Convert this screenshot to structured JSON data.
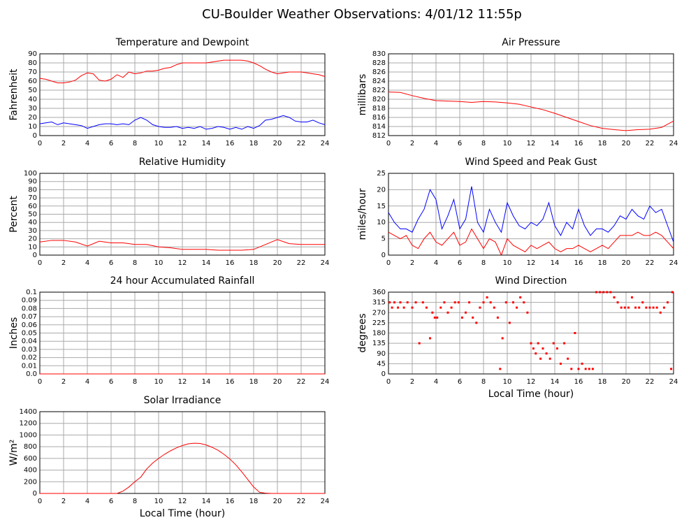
{
  "title": "CU-Boulder Weather Observations: 4/01/12 11:55p",
  "chart_data": [
    {
      "type": "line",
      "title": "Temperature and Dewpoint",
      "ylabel": "Fahrenheit",
      "grid": true,
      "xlim": [
        0,
        24
      ],
      "xticks": [
        0,
        2,
        4,
        6,
        8,
        10,
        12,
        14,
        16,
        18,
        20,
        22,
        24
      ],
      "ylim": [
        0,
        90
      ],
      "yticks": [
        0,
        10,
        20,
        30,
        40,
        50,
        60,
        70,
        80,
        90
      ],
      "x": [
        0,
        0.5,
        1,
        1.5,
        2,
        2.5,
        3,
        3.5,
        4,
        4.5,
        5,
        5.5,
        6,
        6.5,
        7,
        7.5,
        8,
        8.5,
        9,
        9.5,
        10,
        10.5,
        11,
        11.5,
        12,
        12.5,
        13,
        13.5,
        14,
        14.5,
        15,
        15.5,
        16,
        16.5,
        17,
        17.5,
        18,
        18.5,
        19,
        19.5,
        20,
        20.5,
        21,
        21.5,
        22,
        22.5,
        23,
        23.5,
        24
      ],
      "series": [
        {
          "color": "#ff0000",
          "values": [
            63,
            62,
            60,
            58,
            58,
            59,
            61,
            66,
            69,
            68,
            61,
            60,
            62,
            67,
            64,
            70,
            68,
            69,
            71,
            71,
            72,
            74,
            75,
            78,
            80,
            80,
            80,
            80,
            80,
            81,
            82,
            83,
            83,
            83,
            83,
            82,
            80,
            77,
            73,
            70,
            68,
            69,
            70,
            70,
            70,
            69,
            68,
            67,
            65
          ]
        },
        {
          "color": "#0000ff",
          "values": [
            13,
            14,
            15,
            12,
            14,
            13,
            12,
            11,
            8,
            10,
            12,
            13,
            13,
            12,
            13,
            12,
            17,
            20,
            17,
            12,
            10,
            9,
            9,
            10,
            8,
            9,
            8,
            10,
            7,
            8,
            10,
            9,
            7,
            9,
            7,
            10,
            8,
            11,
            17,
            18,
            20,
            22,
            20,
            16,
            15,
            15,
            17,
            14,
            12
          ]
        }
      ]
    },
    {
      "type": "line",
      "title": "Air Pressure",
      "ylabel": "millibars",
      "grid": true,
      "xlim": [
        0,
        24
      ],
      "xticks": [
        0,
        2,
        4,
        6,
        8,
        10,
        12,
        14,
        16,
        18,
        20,
        22,
        24
      ],
      "ylim": [
        812,
        830
      ],
      "yticks": [
        812,
        814,
        816,
        818,
        820,
        822,
        824,
        826,
        828,
        830
      ],
      "x": [
        0,
        1,
        2,
        3,
        4,
        5,
        6,
        7,
        8,
        9,
        10,
        11,
        12,
        13,
        14,
        15,
        16,
        17,
        18,
        19,
        20,
        21,
        22,
        23,
        24
      ],
      "series": [
        {
          "color": "#ff0000",
          "values": [
            821.6,
            821.5,
            820.8,
            820.2,
            819.7,
            819.6,
            819.5,
            819.3,
            819.5,
            819.4,
            819.2,
            818.9,
            818.3,
            817.7,
            816.9,
            816.0,
            815.1,
            814.2,
            813.6,
            813.3,
            813.1,
            813.3,
            813.4,
            813.8,
            815.2
          ]
        }
      ]
    },
    {
      "type": "line",
      "title": "Relative Humidity",
      "ylabel": "Percent",
      "grid": true,
      "xlim": [
        0,
        24
      ],
      "xticks": [
        0,
        2,
        4,
        6,
        8,
        10,
        12,
        14,
        16,
        18,
        20,
        22,
        24
      ],
      "ylim": [
        0,
        100
      ],
      "yticks": [
        0,
        10,
        20,
        30,
        40,
        50,
        60,
        70,
        80,
        90,
        100
      ],
      "x": [
        0,
        1,
        2,
        3,
        4,
        5,
        6,
        7,
        8,
        9,
        10,
        11,
        12,
        13,
        14,
        15,
        16,
        17,
        18,
        19,
        20,
        21,
        22,
        23,
        24
      ],
      "series": [
        {
          "color": "#ff0000",
          "values": [
            16,
            18,
            18,
            16,
            11,
            17,
            15,
            15,
            13,
            13,
            10,
            9,
            7,
            7,
            7,
            6,
            6,
            6,
            7,
            13,
            19,
            14,
            13,
            13,
            13
          ]
        }
      ]
    },
    {
      "type": "line",
      "title": "Wind Speed and Peak Gust",
      "ylabel": "miles/hour",
      "grid": true,
      "xlim": [
        0,
        24
      ],
      "xticks": [
        0,
        2,
        4,
        6,
        8,
        10,
        12,
        14,
        16,
        18,
        20,
        22,
        24
      ],
      "ylim": [
        0,
        25
      ],
      "yticks": [
        0,
        5,
        10,
        15,
        20,
        25
      ],
      "x": [
        0,
        0.5,
        1,
        1.5,
        2,
        2.5,
        3,
        3.5,
        4,
        4.5,
        5,
        5.5,
        6,
        6.5,
        7,
        7.5,
        8,
        8.5,
        9,
        9.5,
        10,
        10.5,
        11,
        11.5,
        12,
        12.5,
        13,
        13.5,
        14,
        14.5,
        15,
        15.5,
        16,
        16.5,
        17,
        17.5,
        18,
        18.5,
        19,
        19.5,
        20,
        20.5,
        21,
        21.5,
        22,
        22.5,
        23,
        23.5,
        24
      ],
      "series": [
        {
          "color": "#0000ff",
          "values": [
            13,
            10,
            8,
            8,
            7,
            11,
            14,
            20,
            17,
            8,
            12,
            17,
            8,
            11,
            21,
            10,
            7,
            14,
            10,
            7,
            16,
            12,
            9,
            8,
            10,
            9,
            11,
            16,
            9,
            6,
            10,
            8,
            14,
            9,
            6,
            8,
            8,
            7,
            9,
            12,
            11,
            14,
            12,
            11,
            15,
            13,
            14,
            9,
            4
          ]
        },
        {
          "color": "#ff0000",
          "values": [
            7,
            6,
            5,
            6,
            3,
            2,
            5,
            7,
            4,
            3,
            5,
            7,
            3,
            4,
            8,
            5,
            2,
            5,
            4,
            0,
            5,
            3,
            2,
            1,
            3,
            2,
            3,
            4,
            2,
            1,
            2,
            2,
            3,
            2,
            1,
            2,
            3,
            2,
            4,
            6,
            6,
            6,
            7,
            6,
            6,
            7,
            6,
            4,
            2
          ]
        }
      ]
    },
    {
      "type": "line",
      "title": "24 hour Accumulated Rainfall",
      "ylabel": "Inches",
      "grid": true,
      "xlim": [
        0,
        24
      ],
      "xticks": [
        0,
        2,
        4,
        6,
        8,
        10,
        12,
        14,
        16,
        18,
        20,
        22,
        24
      ],
      "ylim": [
        0,
        0.1
      ],
      "yticks": [
        {
          "value": 0,
          "label": "0.0"
        },
        0.01,
        0.02,
        0.03,
        0.04,
        0.05,
        0.06,
        0.07,
        0.08,
        0.09,
        0.1
      ],
      "x": [
        0,
        24
      ],
      "series": [
        {
          "color": "#ff0000",
          "values": [
            0,
            0
          ]
        }
      ]
    },
    {
      "type": "scatter",
      "title": "Wind Direction",
      "ylabel": "degrees",
      "xlabel": "Local Time (hour)",
      "grid": true,
      "xlim": [
        0,
        24
      ],
      "xticks": [
        0,
        2,
        4,
        6,
        8,
        10,
        12,
        14,
        16,
        18,
        20,
        22,
        24
      ],
      "ylim": [
        0,
        360
      ],
      "yticks": [
        0,
        45,
        90,
        135,
        180,
        225,
        270,
        315,
        360
      ],
      "x": [
        0.1,
        0.3,
        0.5,
        0.8,
        1.0,
        1.3,
        1.6,
        2.0,
        2.3,
        2.6,
        2.9,
        3.2,
        3.5,
        3.7,
        3.9,
        4.1,
        4.4,
        4.7,
        5.0,
        5.3,
        5.6,
        5.9,
        6.2,
        6.5,
        6.8,
        7.1,
        7.4,
        7.7,
        8.0,
        8.3,
        8.6,
        8.9,
        9.2,
        9.4,
        9.6,
        9.9,
        10.2,
        10.5,
        10.8,
        11.1,
        11.4,
        11.7,
        12.0,
        12.2,
        12.4,
        12.6,
        12.8,
        13.0,
        13.3,
        13.6,
        13.9,
        14.2,
        14.5,
        14.8,
        15.1,
        15.4,
        15.7,
        16.0,
        16.3,
        16.6,
        16.9,
        17.2,
        17.5,
        17.8,
        18.1,
        18.4,
        18.7,
        19.0,
        19.3,
        19.6,
        19.9,
        20.2,
        20.5,
        20.8,
        21.1,
        21.4,
        21.7,
        22.0,
        22.3,
        22.6,
        22.9,
        23.2,
        23.5,
        23.8,
        23.9
      ],
      "series": [
        {
          "color": "#ff0000",
          "values": [
            315,
            292,
            315,
            292,
            315,
            292,
            315,
            292,
            315,
            135,
            315,
            292,
            157,
            270,
            248,
            248,
            292,
            315,
            270,
            292,
            315,
            315,
            248,
            270,
            315,
            248,
            225,
            292,
            315,
            337,
            315,
            292,
            248,
            22,
            157,
            315,
            225,
            315,
            292,
            337,
            315,
            270,
            135,
            112,
            90,
            135,
            67,
            112,
            90,
            67,
            135,
            112,
            45,
            135,
            67,
            22,
            180,
            22,
            45,
            22,
            22,
            22,
            360,
            360,
            360,
            360,
            360,
            337,
            315,
            292,
            292,
            292,
            337,
            292,
            292,
            315,
            292,
            292,
            292,
            292,
            270,
            292,
            315,
            22,
            360
          ]
        }
      ]
    },
    {
      "type": "line",
      "title": "Solar Irradiance",
      "ylabel": "W/m²",
      "xlabel": "Local Time (hour)",
      "grid": true,
      "xlim": [
        0,
        24
      ],
      "xticks": [
        0,
        2,
        4,
        6,
        8,
        10,
        12,
        14,
        16,
        18,
        20,
        22,
        24
      ],
      "ylim": [
        0,
        1400
      ],
      "yticks": [
        0,
        200,
        400,
        600,
        800,
        1000,
        1200,
        1400
      ],
      "x": [
        0,
        0.5,
        1,
        1.5,
        2,
        2.5,
        3,
        3.5,
        4,
        4.5,
        5,
        5.5,
        6,
        6.5,
        7,
        7.5,
        8,
        8.5,
        9,
        9.5,
        10,
        10.5,
        11,
        11.5,
        12,
        12.5,
        13,
        13.5,
        14,
        14.5,
        15,
        15.5,
        16,
        16.5,
        17,
        17.5,
        18,
        18.5,
        19,
        19.5,
        20,
        20.5,
        21,
        21.5,
        22,
        22.5,
        23,
        23.5,
        24
      ],
      "series": [
        {
          "color": "#ff0000",
          "values": [
            0,
            0,
            0,
            0,
            0,
            0,
            0,
            0,
            0,
            0,
            0,
            0,
            0,
            0,
            40,
            110,
            200,
            280,
            420,
            520,
            600,
            670,
            730,
            780,
            820,
            850,
            860,
            855,
            830,
            790,
            740,
            670,
            590,
            490,
            370,
            240,
            110,
            20,
            5,
            0,
            0,
            0,
            0,
            0,
            0,
            0,
            0,
            0,
            0
          ]
        }
      ]
    }
  ]
}
